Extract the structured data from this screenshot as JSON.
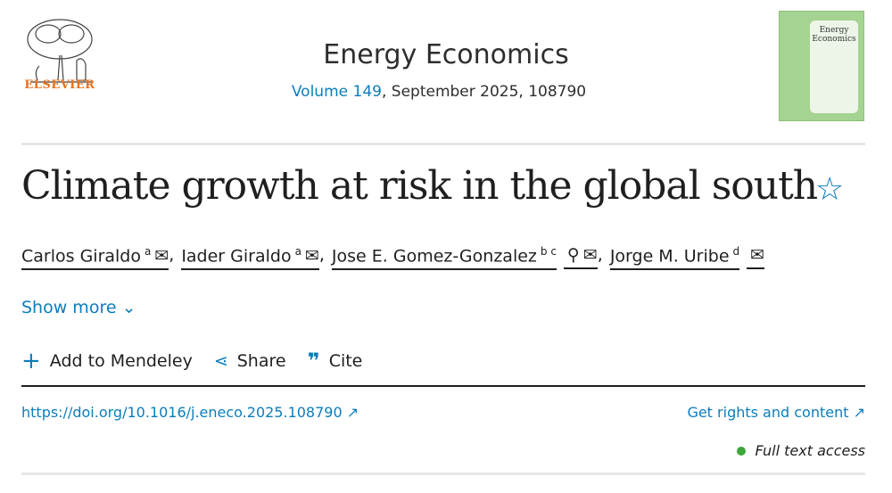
{
  "publisher": {
    "name": "ELSEVIER",
    "color": "#e9711c"
  },
  "journal": {
    "title": "Energy Economics",
    "volume_link": "Volume 149",
    "issue_rest": ", September 2025, 108790",
    "cover_title": "Energy Economics"
  },
  "article": {
    "title": "Climate growth at risk in the global south",
    "bookmark_icon": "star-icon"
  },
  "authors": [
    {
      "name": "Carlos Giraldo",
      "sup": "a",
      "sep": ","
    },
    {
      "name": "Iader Giraldo",
      "sup": "a",
      "sep": ","
    },
    {
      "name": "Jose E. Gomez-Gonzalez",
      "sup": "b c",
      "sep": ","
    },
    {
      "name": "Jorge M. Uribe",
      "sup": "d",
      "sep": ""
    }
  ],
  "show_more": "Show more",
  "actions": {
    "mendeley": "Add to Mendeley",
    "share": "Share",
    "cite": "Cite"
  },
  "doi": "https://doi.org/10.1016/j.eneco.2025.108790",
  "rights": "Get rights and content",
  "access": {
    "label": "Full text access",
    "color": "#3aa83a"
  },
  "accent": "#0c7dbb"
}
